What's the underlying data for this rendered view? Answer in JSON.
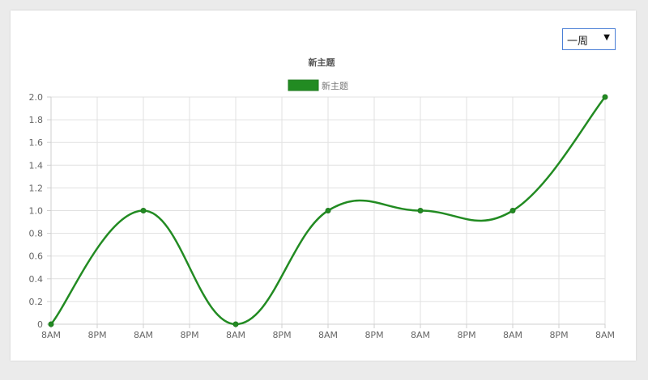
{
  "range_select": {
    "value": "一周",
    "arrow_icon": "dropdown-arrow-icon"
  },
  "chart_data": {
    "type": "line",
    "title": "新主题",
    "legend": {
      "position": "top",
      "entries": [
        "新主题"
      ]
    },
    "colors": {
      "series": "#228b22",
      "grid": "#e1e1e1",
      "axis": "#cfcfcf",
      "tick_text": "#666666",
      "title_text": "#555555"
    },
    "x_tick_labels": [
      "8AM",
      "8PM",
      "8AM",
      "8PM",
      "8AM",
      "8PM",
      "8AM",
      "8PM",
      "8AM",
      "8PM",
      "8AM",
      "8PM",
      "8AM"
    ],
    "y_tick_labels": [
      "0",
      "0.2",
      "0.4",
      "0.6",
      "0.8",
      "1.0",
      "1.2",
      "1.4",
      "1.6",
      "1.8",
      "2.0"
    ],
    "ylim": [
      0,
      2.0
    ],
    "y_step": 0.2,
    "grid": true,
    "series": [
      {
        "name": "新主题",
        "x_index": [
          0,
          2,
          4,
          6,
          8,
          10,
          12
        ],
        "values": [
          0,
          1.0,
          0,
          1.0,
          1.0,
          1.0,
          2.0
        ]
      }
    ]
  }
}
